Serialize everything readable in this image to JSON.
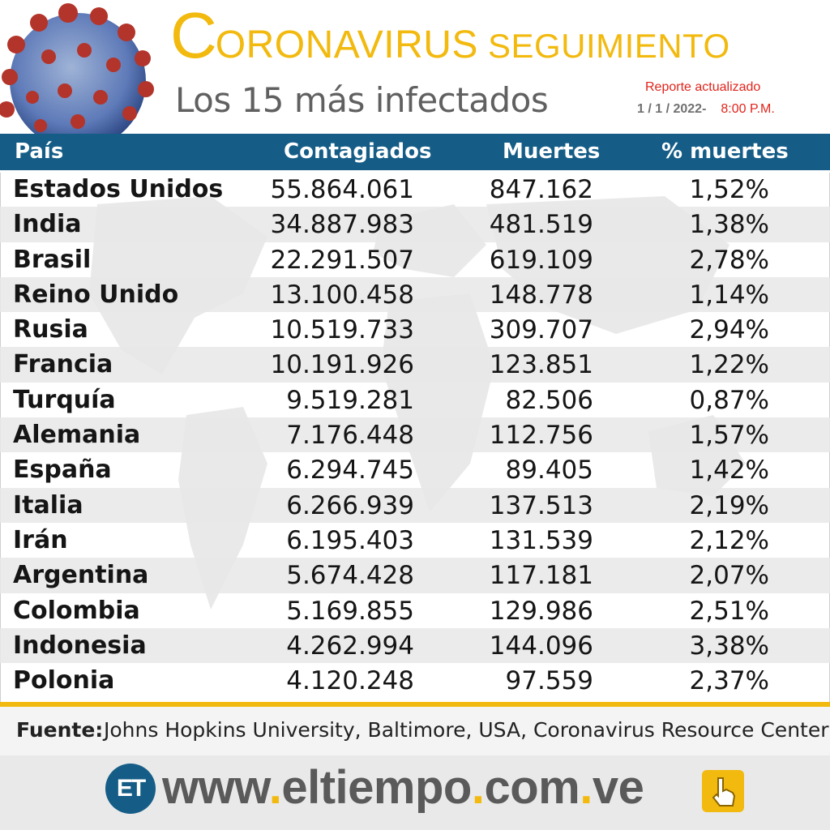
{
  "header": {
    "title_c": "C",
    "title_rest": "ORONAVIRUS",
    "title_seg": "SEGUIMIENTO",
    "subtitle": "Los 15 más infectados",
    "report_label": "Reporte actualizado",
    "report_date": "1 / 1 / 2022-",
    "report_time": "8:00 P.M."
  },
  "table": {
    "columns": [
      "País",
      "Contagiados",
      "Muertes",
      "% muertes"
    ],
    "rows": [
      [
        "Estados Unidos",
        "55.864.061",
        "847.162",
        "1,52%"
      ],
      [
        "India",
        "34.887.983",
        "481.519",
        "1,38%"
      ],
      [
        "Brasil",
        "22.291.507",
        "619.109",
        "2,78%"
      ],
      [
        "Reino Unido",
        "13.100.458",
        "148.778",
        "1,14%"
      ],
      [
        "Rusia",
        "10.519.733",
        "309.707",
        "2,94%"
      ],
      [
        "Francia",
        "10.191.926",
        "123.851",
        "1,22%"
      ],
      [
        "Turquía",
        "9.519.281",
        "82.506",
        "0,87%"
      ],
      [
        "Alemania",
        "7.176.448",
        "112.756",
        "1,57%"
      ],
      [
        "España",
        "6.294.745",
        "89.405",
        "1,42%"
      ],
      [
        "Italia",
        "6.266.939",
        "137.513",
        "2,19%"
      ],
      [
        "Irán",
        "6.195.403",
        "131.539",
        "2,12%"
      ],
      [
        "Argentina",
        "5.674.428",
        "117.181",
        "2,07%"
      ],
      [
        "Colombia",
        "5.169.855",
        "129.986",
        "2,51%"
      ],
      [
        "Indonesia",
        "4.262.994",
        "144.096",
        "3,38%"
      ],
      [
        "Polonia",
        "4.120.248",
        "97.559",
        "2,37%"
      ]
    ]
  },
  "footer": {
    "source_label": "Fuente:",
    "source_text": "Johns Hopkins University, Baltimore, USA, Coronavirus Resource Center",
    "logo_text": "ET",
    "url_parts": [
      "www",
      ".",
      "eltiempo",
      ".",
      "com",
      ".",
      "ve"
    ]
  },
  "colors": {
    "accent_yellow": "#f2b90e",
    "header_blue": "#155d87",
    "report_red": "#e2231a"
  },
  "icons": [
    "coronavirus-image",
    "et-logo",
    "hand-pointer-icon"
  ]
}
